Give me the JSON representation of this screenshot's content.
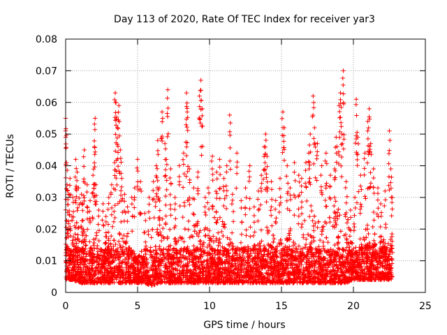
{
  "chart_data": {
    "type": "scatter",
    "title": "Day 113 of 2020, Rate Of TEC Index for receiver yar3",
    "xlabel": "GPS time / hours",
    "ylabel": "ROTI / TECUs",
    "xlim": [
      0,
      25
    ],
    "ylim": [
      0,
      0.08
    ],
    "xticks": [
      "0",
      "5",
      "10",
      "15",
      "20",
      "25"
    ],
    "yticks": [
      "0",
      "0.01",
      "0.02",
      "0.03",
      "0.04",
      "0.05",
      "0.06",
      "0.07",
      "0.08"
    ],
    "grid": true,
    "marker": "+",
    "color": "#ff0000",
    "data_x_range": [
      0,
      22.7
    ],
    "series": [
      {
        "points": [
          [
            0.0,
            0.055
          ],
          [
            0.0,
            0.051
          ],
          [
            0.05,
            0.041
          ],
          [
            0.1,
            0.034
          ],
          [
            0.2,
            0.031
          ],
          [
            0.3,
            0.036
          ],
          [
            0.5,
            0.03
          ],
          [
            0.7,
            0.042
          ],
          [
            0.8,
            0.038
          ],
          [
            0.9,
            0.033
          ],
          [
            1.1,
            0.031
          ],
          [
            1.2,
            0.028
          ],
          [
            1.3,
            0.045
          ],
          [
            1.5,
            0.034
          ],
          [
            1.7,
            0.029
          ],
          [
            1.9,
            0.037
          ],
          [
            2.0,
            0.046
          ],
          [
            2.05,
            0.055
          ],
          [
            2.1,
            0.034
          ],
          [
            2.3,
            0.026
          ],
          [
            2.6,
            0.028
          ],
          [
            2.8,
            0.024
          ],
          [
            3.0,
            0.03
          ],
          [
            3.2,
            0.034
          ],
          [
            3.4,
            0.041
          ],
          [
            3.45,
            0.063
          ],
          [
            3.5,
            0.06
          ],
          [
            3.6,
            0.052
          ],
          [
            3.7,
            0.059
          ],
          [
            3.8,
            0.045
          ],
          [
            3.9,
            0.036
          ],
          [
            4.1,
            0.031
          ],
          [
            4.3,
            0.027
          ],
          [
            4.6,
            0.03
          ],
          [
            4.8,
            0.033
          ],
          [
            5.0,
            0.042
          ],
          [
            5.2,
            0.035
          ],
          [
            5.5,
            0.025
          ],
          [
            5.8,
            0.03
          ],
          [
            6.1,
            0.035
          ],
          [
            6.3,
            0.04
          ],
          [
            6.4,
            0.048
          ],
          [
            6.5,
            0.033
          ],
          [
            6.7,
            0.057
          ],
          [
            6.9,
            0.047
          ],
          [
            7.0,
            0.042
          ],
          [
            7.1,
            0.064
          ],
          [
            7.3,
            0.039
          ],
          [
            7.6,
            0.03
          ],
          [
            7.9,
            0.04
          ],
          [
            8.2,
            0.044
          ],
          [
            8.4,
            0.063
          ],
          [
            8.45,
            0.057
          ],
          [
            8.6,
            0.039
          ],
          [
            8.9,
            0.033
          ],
          [
            9.2,
            0.038
          ],
          [
            9.3,
            0.062
          ],
          [
            9.4,
            0.067
          ],
          [
            9.5,
            0.058
          ],
          [
            9.7,
            0.03
          ],
          [
            9.9,
            0.033
          ],
          [
            10.2,
            0.043
          ],
          [
            10.5,
            0.038
          ],
          [
            10.7,
            0.042
          ],
          [
            11.0,
            0.036
          ],
          [
            11.2,
            0.04
          ],
          [
            11.4,
            0.056
          ],
          [
            11.6,
            0.031
          ],
          [
            11.9,
            0.044
          ],
          [
            12.2,
            0.029
          ],
          [
            12.5,
            0.033
          ],
          [
            12.8,
            0.04
          ],
          [
            13.1,
            0.027
          ],
          [
            13.4,
            0.032
          ],
          [
            13.6,
            0.037
          ],
          [
            13.8,
            0.046
          ],
          [
            13.9,
            0.05
          ],
          [
            14.0,
            0.043
          ],
          [
            14.3,
            0.035
          ],
          [
            14.6,
            0.029
          ],
          [
            14.9,
            0.036
          ],
          [
            15.1,
            0.057
          ],
          [
            15.2,
            0.052
          ],
          [
            15.4,
            0.04
          ],
          [
            15.6,
            0.033
          ],
          [
            15.9,
            0.041
          ],
          [
            16.2,
            0.037
          ],
          [
            16.4,
            0.036
          ],
          [
            16.7,
            0.041
          ],
          [
            16.9,
            0.044
          ],
          [
            17.0,
            0.05
          ],
          [
            17.2,
            0.062
          ],
          [
            17.3,
            0.052
          ],
          [
            17.5,
            0.047
          ],
          [
            17.8,
            0.04
          ],
          [
            18.1,
            0.044
          ],
          [
            18.4,
            0.037
          ],
          [
            18.7,
            0.039
          ],
          [
            18.8,
            0.049
          ],
          [
            19.0,
            0.059
          ],
          [
            19.1,
            0.063
          ],
          [
            19.2,
            0.05
          ],
          [
            19.3,
            0.07
          ],
          [
            19.5,
            0.035
          ],
          [
            19.8,
            0.026
          ],
          [
            20.1,
            0.03
          ],
          [
            20.2,
            0.061
          ],
          [
            20.3,
            0.049
          ],
          [
            20.5,
            0.037
          ],
          [
            20.8,
            0.044
          ],
          [
            21.0,
            0.054
          ],
          [
            21.1,
            0.058
          ],
          [
            21.2,
            0.047
          ],
          [
            21.4,
            0.039
          ],
          [
            21.7,
            0.033
          ],
          [
            21.9,
            0.028
          ],
          [
            22.2,
            0.032
          ],
          [
            22.5,
            0.051
          ],
          [
            22.6,
            0.039
          ],
          [
            22.7,
            0.03
          ]
        ]
      }
    ],
    "dense_band": {
      "x": [
        0.0,
        0.5,
        1.0,
        1.5,
        2.0,
        2.5,
        3.0,
        3.5,
        4.0,
        4.5,
        5.0,
        5.5,
        6.0,
        6.5,
        7.0,
        7.5,
        8.0,
        8.5,
        9.0,
        9.5,
        10.0,
        10.5,
        11.0,
        11.5,
        12.0,
        12.5,
        13.0,
        13.5,
        14.0,
        14.5,
        15.0,
        15.5,
        16.0,
        16.5,
        17.0,
        17.5,
        18.0,
        18.5,
        19.0,
        19.5,
        20.0,
        20.5,
        21.0,
        21.5,
        22.0,
        22.7
      ],
      "y_low": [
        0.004,
        0.004,
        0.003,
        0.003,
        0.003,
        0.003,
        0.003,
        0.003,
        0.003,
        0.003,
        0.003,
        0.003,
        0.002,
        0.003,
        0.003,
        0.003,
        0.003,
        0.003,
        0.003,
        0.003,
        0.003,
        0.003,
        0.003,
        0.003,
        0.003,
        0.003,
        0.003,
        0.003,
        0.003,
        0.003,
        0.003,
        0.003,
        0.003,
        0.003,
        0.003,
        0.003,
        0.003,
        0.003,
        0.003,
        0.003,
        0.004,
        0.004,
        0.004,
        0.004,
        0.004,
        0.004
      ],
      "y_high": [
        0.024,
        0.026,
        0.022,
        0.018,
        0.016,
        0.015,
        0.017,
        0.02,
        0.019,
        0.014,
        0.012,
        0.014,
        0.02,
        0.025,
        0.023,
        0.017,
        0.018,
        0.022,
        0.024,
        0.02,
        0.022,
        0.026,
        0.022,
        0.016,
        0.014,
        0.015,
        0.016,
        0.019,
        0.022,
        0.02,
        0.018,
        0.02,
        0.019,
        0.022,
        0.026,
        0.027,
        0.024,
        0.025,
        0.027,
        0.026,
        0.015,
        0.017,
        0.022,
        0.02,
        0.017,
        0.018
      ]
    }
  }
}
